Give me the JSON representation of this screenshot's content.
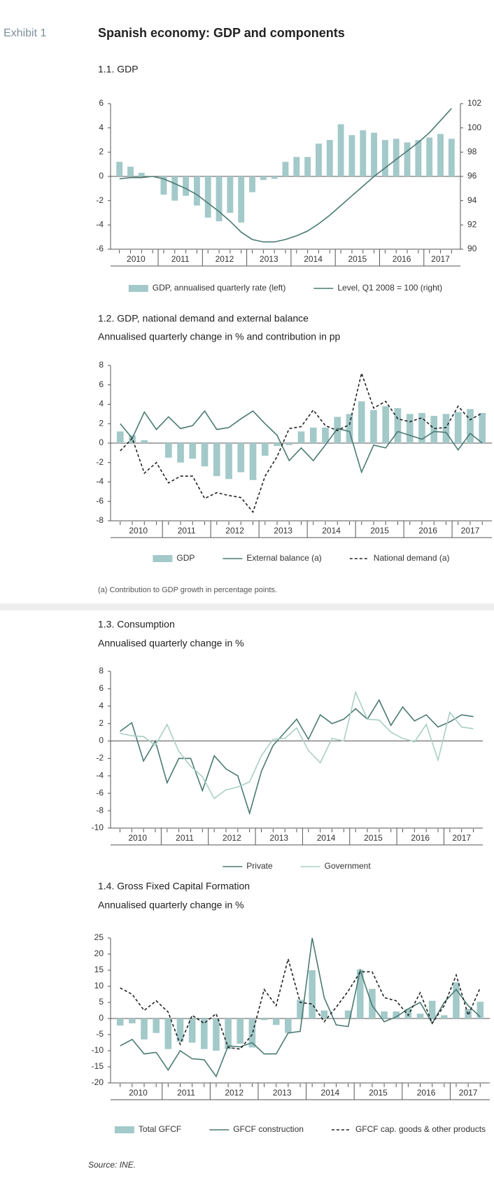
{
  "header": {
    "exhibit": "Exhibit 1",
    "title": "Spanish economy: GDP and components"
  },
  "chart_data": [
    {
      "type": "combo",
      "title": "1.1. GDP",
      "categories": [
        "2010",
        null,
        null,
        null,
        "2011",
        null,
        null,
        null,
        "2012",
        null,
        null,
        null,
        "2013",
        null,
        null,
        null,
        "2014",
        null,
        null,
        null,
        "2015",
        null,
        null,
        null,
        "2016",
        null,
        null,
        null,
        "2017",
        null,
        null
      ],
      "ylim": [
        -6,
        6
      ],
      "yticks": [
        -6,
        -4,
        -2,
        0,
        2,
        4,
        6
      ],
      "y2lim": [
        90,
        102
      ],
      "y2ticks": [
        90,
        92,
        94,
        96,
        98,
        100,
        102
      ],
      "series": [
        {
          "name": "GDP, annualised quarterly rate (left)",
          "kind": "bar",
          "color": "#a3c9c9",
          "values": [
            1.2,
            0.8,
            0.3,
            0.0,
            -1.5,
            -2.0,
            -1.6,
            -2.4,
            -3.4,
            -3.7,
            -3.0,
            -3.8,
            -1.3,
            -0.3,
            -0.2,
            1.2,
            1.6,
            1.6,
            2.7,
            3.0,
            4.3,
            3.4,
            3.8,
            3.6,
            3.0,
            3.1,
            2.8,
            3.0,
            3.2,
            3.5,
            3.1
          ]
        },
        {
          "name": "Level, Q1 2008 = 100 (right)",
          "kind": "line",
          "axis": "y2",
          "color": "#4a7a72",
          "values": [
            95.8,
            95.9,
            95.9,
            96.0,
            95.8,
            95.4,
            95.0,
            94.5,
            93.8,
            93.1,
            92.3,
            91.4,
            90.8,
            90.6,
            90.6,
            90.8,
            91.1,
            91.5,
            92.1,
            92.8,
            93.6,
            94.4,
            95.2,
            96.0,
            96.7,
            97.4,
            98.1,
            98.8,
            99.6,
            100.6,
            101.6
          ]
        }
      ]
    },
    {
      "type": "combo",
      "title": "1.2. GDP, national demand and external balance",
      "subtitle": "Annualised quarterly change in % and contribution in pp",
      "categories": [
        "2010",
        null,
        null,
        null,
        "2011",
        null,
        null,
        null,
        "2012",
        null,
        null,
        null,
        "2013",
        null,
        null,
        null,
        "2014",
        null,
        null,
        null,
        "2015",
        null,
        null,
        null,
        "2016",
        null,
        null,
        null,
        "2017",
        null,
        null
      ],
      "ylim": [
        -8,
        8
      ],
      "yticks": [
        -8,
        -6,
        -4,
        -2,
        0,
        2,
        4,
        6,
        8
      ],
      "note": "(a) Contribution to GDP growth in percentage points.",
      "series": [
        {
          "name": "GDP",
          "kind": "bar",
          "color": "#a3c9c9",
          "values": [
            1.2,
            0.8,
            0.3,
            0.0,
            -1.5,
            -2.0,
            -1.6,
            -2.4,
            -3.4,
            -3.7,
            -3.0,
            -3.8,
            -1.3,
            -0.3,
            -0.2,
            1.2,
            1.6,
            1.6,
            2.7,
            3.0,
            4.3,
            3.4,
            3.8,
            3.6,
            3.0,
            3.1,
            2.8,
            3.0,
            3.2,
            3.5,
            3.1
          ]
        },
        {
          "name": "External balance (a)",
          "kind": "line",
          "color": "#4a7a72",
          "values": [
            2.0,
            0.5,
            3.2,
            1.4,
            2.7,
            1.5,
            1.8,
            3.3,
            1.4,
            1.6,
            2.5,
            3.3,
            2.0,
            0.8,
            -1.8,
            -0.5,
            -1.8,
            -0.2,
            1.5,
            1.2,
            -3.0,
            -0.2,
            -0.5,
            1.2,
            0.8,
            0.4,
            1.2,
            1.1,
            -0.7,
            1.0,
            0.0
          ]
        },
        {
          "name": "National demand (a)",
          "kind": "line",
          "dash": true,
          "color": "#222222",
          "values": [
            -0.8,
            0.5,
            -3.1,
            -2.0,
            -4.1,
            -3.4,
            -3.4,
            -5.7,
            -5.1,
            -5.4,
            -5.6,
            -7.1,
            -3.4,
            -1.4,
            1.5,
            1.7,
            3.4,
            1.8,
            1.3,
            1.9,
            7.2,
            3.6,
            4.3,
            2.5,
            2.2,
            2.6,
            1.5,
            1.6,
            3.8,
            2.4,
            3.1
          ]
        }
      ]
    },
    {
      "type": "line",
      "title": "1.3. Consumption",
      "subtitle": "Annualised  quarterly change in %",
      "categories": [
        "2010",
        null,
        null,
        null,
        "2011",
        null,
        null,
        null,
        "2012",
        null,
        null,
        null,
        "2013",
        null,
        null,
        null,
        "2014",
        null,
        null,
        null,
        "2015",
        null,
        null,
        null,
        "2016",
        null,
        null,
        null,
        "2017",
        null,
        null
      ],
      "ylim": [
        -10,
        8
      ],
      "yticks": [
        -10,
        -8,
        -6,
        -4,
        -2,
        0,
        2,
        4,
        6,
        8
      ],
      "series": [
        {
          "name": "Private",
          "kind": "line",
          "color": "#4a7a72",
          "values": [
            1.1,
            2.1,
            -2.3,
            0.0,
            -4.8,
            -2.0,
            -2.0,
            -5.7,
            -1.7,
            -3.2,
            -4.0,
            -8.3,
            -3.5,
            -0.5,
            1.0,
            2.5,
            0.2,
            3.0,
            2.0,
            2.5,
            3.7,
            2.5,
            4.7,
            1.8,
            3.9,
            2.3,
            3.0,
            1.6,
            2.2,
            3.0,
            2.8
          ]
        },
        {
          "name": "Government",
          "kind": "line",
          "color": "#a9cfc4",
          "values": [
            0.9,
            0.6,
            0.5,
            -0.5,
            1.9,
            -1.2,
            -2.9,
            -4.1,
            -6.6,
            -5.6,
            -5.3,
            -4.7,
            -1.7,
            0.2,
            0.3,
            1.5,
            -1.1,
            -2.5,
            0.3,
            0.0,
            5.6,
            2.5,
            2.4,
            1.0,
            0.3,
            -0.1,
            1.9,
            -2.2,
            3.3,
            1.6,
            1.4
          ]
        }
      ]
    },
    {
      "type": "combo",
      "title": "1.4. Gross Fixed Capital Formation",
      "subtitle": "Annualised quarterly change in %",
      "categories": [
        "2010",
        null,
        null,
        null,
        "2011",
        null,
        null,
        null,
        "2012",
        null,
        null,
        null,
        "2013",
        null,
        null,
        null,
        "2014",
        null,
        null,
        null,
        "2015",
        null,
        null,
        null,
        "2016",
        null,
        null,
        null,
        "2017",
        null,
        null
      ],
      "ylim": [
        -20,
        25
      ],
      "yticks": [
        -20,
        -15,
        -10,
        -5,
        0,
        5,
        10,
        15,
        20,
        25
      ],
      "series": [
        {
          "name": "Total GFCF",
          "kind": "bar",
          "color": "#a3c9c9",
          "values": [
            -2.2,
            -1.5,
            -6.5,
            -4.5,
            -9.5,
            -7.2,
            -7.5,
            -9.5,
            -10.0,
            -9.5,
            -7.8,
            -9.0,
            -0.5,
            -2.0,
            -4.5,
            5.8,
            15.0,
            2.5,
            0.0,
            2.5,
            15.2,
            9.2,
            2.2,
            2.2,
            3.0,
            1.5,
            5.5,
            1.0,
            11.2,
            3.0,
            5.2
          ]
        },
        {
          "name": "GFCF construction",
          "kind": "line",
          "color": "#4a7a72",
          "values": [
            -8.5,
            -6.5,
            -11.0,
            -10.5,
            -16.0,
            -10.0,
            -12.5,
            -12.8,
            -18.0,
            -8.5,
            -8.8,
            -7.5,
            -11.0,
            -11.0,
            -4.5,
            -4.0,
            25.0,
            6.5,
            -2.0,
            -2.5,
            15.0,
            4.0,
            -1.0,
            0.5,
            3.0,
            5.0,
            -1.5,
            5.0,
            9.0,
            4.0,
            0.5
          ]
        },
        {
          "name": "GFCF cap. goods & other products",
          "kind": "line",
          "dash": true,
          "color": "#222222",
          "values": [
            9.5,
            7.5,
            2.5,
            5.5,
            2.0,
            -8.0,
            1.0,
            -1.5,
            1.5,
            -9.0,
            -9.5,
            -5.0,
            9.0,
            4.0,
            18.5,
            5.0,
            4.5,
            -1.0,
            3.5,
            8.5,
            14.5,
            14.5,
            6.5,
            5.5,
            1.0,
            8.0,
            -1.5,
            4.0,
            13.5,
            1.0,
            9.5
          ]
        }
      ]
    }
  ],
  "source": "Source: INE."
}
